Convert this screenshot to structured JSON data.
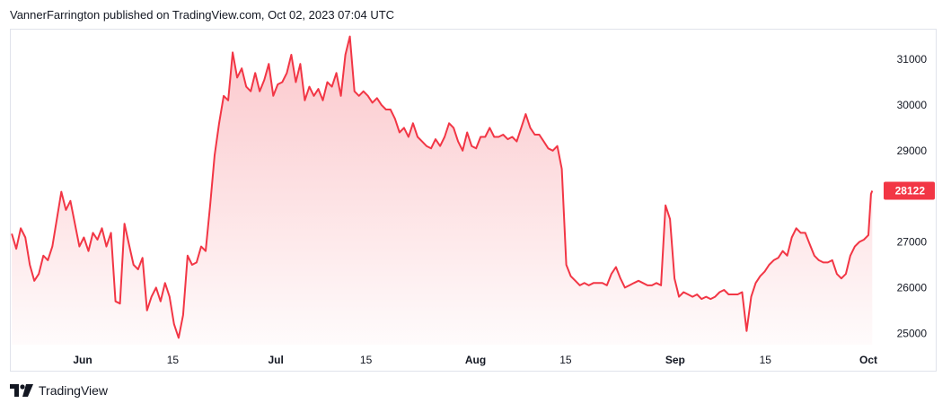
{
  "header": {
    "text": "VannerFarrington published on TradingView.com, Oct 02, 2023 07:04 UTC"
  },
  "footer": {
    "brand": "TradingView",
    "logo_icon": "tradingview-logo-icon"
  },
  "chart_data": {
    "type": "area",
    "title": "",
    "xlabel": "",
    "ylabel": "",
    "ylim": [
      24750,
      31650
    ],
    "y_ticks": [
      25000,
      26000,
      27000,
      28000,
      29000,
      30000,
      31000
    ],
    "x_ticks": [
      {
        "label": "Jun",
        "day": 0,
        "month": true
      },
      {
        "label": "15",
        "day": 14,
        "month": false
      },
      {
        "label": "Jul",
        "day": 30,
        "month": true
      },
      {
        "label": "15",
        "day": 44,
        "month": false
      },
      {
        "label": "Aug",
        "day": 61,
        "month": true
      },
      {
        "label": "15",
        "day": 75,
        "month": false
      },
      {
        "label": "Sep",
        "day": 92,
        "month": true
      },
      {
        "label": "15",
        "day": 106,
        "month": false
      },
      {
        "label": "Oct",
        "day": 122,
        "month": true
      }
    ],
    "line_color": "#f23645",
    "fill_color": "#f23645",
    "last_price": {
      "label": "28122",
      "value": 28122,
      "color": "#f23645"
    },
    "series": [
      {
        "points": [
          [
            -11,
            27180
          ],
          [
            -10.3,
            26850
          ],
          [
            -9.6,
            27300
          ],
          [
            -8.9,
            27100
          ],
          [
            -8.2,
            26500
          ],
          [
            -7.5,
            26150
          ],
          [
            -6.8,
            26300
          ],
          [
            -6.1,
            26700
          ],
          [
            -5.4,
            26600
          ],
          [
            -4.7,
            26900
          ],
          [
            -4,
            27500
          ],
          [
            -3.3,
            28100
          ],
          [
            -2.6,
            27700
          ],
          [
            -1.9,
            27900
          ],
          [
            -1.2,
            27400
          ],
          [
            -0.5,
            26900
          ],
          [
            0.2,
            27100
          ],
          [
            0.9,
            26800
          ],
          [
            1.6,
            27200
          ],
          [
            2.3,
            27050
          ],
          [
            3,
            27300
          ],
          [
            3.7,
            26900
          ],
          [
            4.4,
            27200
          ],
          [
            5.1,
            25700
          ],
          [
            5.8,
            25650
          ],
          [
            6.5,
            27400
          ],
          [
            7.2,
            26950
          ],
          [
            7.9,
            26500
          ],
          [
            8.6,
            26400
          ],
          [
            9.3,
            26650
          ],
          [
            10,
            25500
          ],
          [
            10.7,
            25800
          ],
          [
            11.4,
            26000
          ],
          [
            12.1,
            25700
          ],
          [
            12.8,
            26100
          ],
          [
            13.5,
            25800
          ],
          [
            14.2,
            25200
          ],
          [
            14.9,
            24900
          ],
          [
            15.6,
            25400
          ],
          [
            16.3,
            26700
          ],
          [
            17,
            26500
          ],
          [
            17.7,
            26550
          ],
          [
            18.4,
            26900
          ],
          [
            19.1,
            26800
          ],
          [
            19.8,
            27800
          ],
          [
            20.5,
            28900
          ],
          [
            21.2,
            29600
          ],
          [
            21.9,
            30200
          ],
          [
            22.6,
            30100
          ],
          [
            23.3,
            31150
          ],
          [
            24,
            30600
          ],
          [
            24.7,
            30800
          ],
          [
            25.4,
            30400
          ],
          [
            26.1,
            30300
          ],
          [
            26.8,
            30700
          ],
          [
            27.5,
            30300
          ],
          [
            28.2,
            30550
          ],
          [
            28.9,
            30900
          ],
          [
            29.6,
            30200
          ],
          [
            30.3,
            30450
          ],
          [
            31,
            30500
          ],
          [
            31.7,
            30700
          ],
          [
            32.4,
            31100
          ],
          [
            33.1,
            30500
          ],
          [
            33.8,
            30900
          ],
          [
            34.5,
            30100
          ],
          [
            35.2,
            30400
          ],
          [
            35.9,
            30200
          ],
          [
            36.6,
            30350
          ],
          [
            37.3,
            30100
          ],
          [
            38,
            30500
          ],
          [
            38.7,
            30400
          ],
          [
            39.4,
            30700
          ],
          [
            40.1,
            30200
          ],
          [
            40.8,
            31100
          ],
          [
            41.5,
            31500
          ],
          [
            42.2,
            30300
          ],
          [
            42.9,
            30200
          ],
          [
            43.6,
            30300
          ],
          [
            44.3,
            30200
          ],
          [
            45,
            30050
          ],
          [
            45.7,
            30150
          ],
          [
            46.4,
            30000
          ],
          [
            47.1,
            29900
          ],
          [
            47.8,
            29900
          ],
          [
            48.5,
            29700
          ],
          [
            49.2,
            29400
          ],
          [
            49.9,
            29500
          ],
          [
            50.6,
            29300
          ],
          [
            51.3,
            29600
          ],
          [
            52,
            29300
          ],
          [
            52.7,
            29200
          ],
          [
            53.4,
            29100
          ],
          [
            54.1,
            29050
          ],
          [
            54.8,
            29250
          ],
          [
            55.5,
            29100
          ],
          [
            56.2,
            29300
          ],
          [
            56.9,
            29600
          ],
          [
            57.6,
            29500
          ],
          [
            58.3,
            29200
          ],
          [
            59,
            29000
          ],
          [
            59.7,
            29400
          ],
          [
            60.4,
            29100
          ],
          [
            61.1,
            29050
          ],
          [
            61.8,
            29300
          ],
          [
            62.5,
            29300
          ],
          [
            63.2,
            29500
          ],
          [
            63.9,
            29300
          ],
          [
            64.6,
            29300
          ],
          [
            65.3,
            29350
          ],
          [
            66,
            29250
          ],
          [
            66.7,
            29300
          ],
          [
            67.4,
            29200
          ],
          [
            68.1,
            29500
          ],
          [
            68.8,
            29800
          ],
          [
            69.5,
            29500
          ],
          [
            70.2,
            29350
          ],
          [
            70.9,
            29350
          ],
          [
            71.6,
            29200
          ],
          [
            72.3,
            29050
          ],
          [
            73,
            29000
          ],
          [
            73.7,
            29100
          ],
          [
            74.4,
            28600
          ],
          [
            75.1,
            26500
          ],
          [
            75.8,
            26250
          ],
          [
            76.5,
            26150
          ],
          [
            77.2,
            26050
          ],
          [
            77.9,
            26100
          ],
          [
            78.6,
            26050
          ],
          [
            79.3,
            26100
          ],
          [
            80,
            26100
          ],
          [
            80.7,
            26100
          ],
          [
            81.4,
            26050
          ],
          [
            82.1,
            26300
          ],
          [
            82.8,
            26450
          ],
          [
            83.5,
            26200
          ],
          [
            84.2,
            26000
          ],
          [
            84.9,
            26050
          ],
          [
            85.6,
            26100
          ],
          [
            86.3,
            26150
          ],
          [
            87,
            26100
          ],
          [
            87.7,
            26050
          ],
          [
            88.4,
            26050
          ],
          [
            89.1,
            26100
          ],
          [
            89.8,
            26050
          ],
          [
            90.5,
            27800
          ],
          [
            91.2,
            27500
          ],
          [
            91.9,
            26200
          ],
          [
            92.6,
            25800
          ],
          [
            93.3,
            25900
          ],
          [
            94,
            25850
          ],
          [
            94.7,
            25800
          ],
          [
            95.4,
            25850
          ],
          [
            96.1,
            25750
          ],
          [
            96.8,
            25800
          ],
          [
            97.5,
            25750
          ],
          [
            98.2,
            25800
          ],
          [
            98.9,
            25900
          ],
          [
            99.6,
            25950
          ],
          [
            100.3,
            25850
          ],
          [
            101,
            25850
          ],
          [
            101.7,
            25850
          ],
          [
            102.4,
            25900
          ],
          [
            103.1,
            25050
          ],
          [
            103.8,
            25800
          ],
          [
            104.5,
            26100
          ],
          [
            105.2,
            26250
          ],
          [
            105.9,
            26350
          ],
          [
            106.6,
            26500
          ],
          [
            107.3,
            26600
          ],
          [
            108,
            26650
          ],
          [
            108.7,
            26800
          ],
          [
            109.4,
            26700
          ],
          [
            110.1,
            27100
          ],
          [
            110.8,
            27300
          ],
          [
            111.5,
            27200
          ],
          [
            112.2,
            27200
          ],
          [
            112.9,
            26950
          ],
          [
            113.6,
            26700
          ],
          [
            114.3,
            26600
          ],
          [
            115,
            26550
          ],
          [
            115.7,
            26550
          ],
          [
            116.4,
            26600
          ],
          [
            117.1,
            26300
          ],
          [
            117.8,
            26200
          ],
          [
            118.5,
            26300
          ],
          [
            119.2,
            26700
          ],
          [
            119.9,
            26900
          ],
          [
            120.6,
            27000
          ],
          [
            121.3,
            27050
          ],
          [
            122,
            27150
          ],
          [
            122.4,
            28050
          ],
          [
            122.6,
            28122
          ]
        ]
      }
    ]
  }
}
